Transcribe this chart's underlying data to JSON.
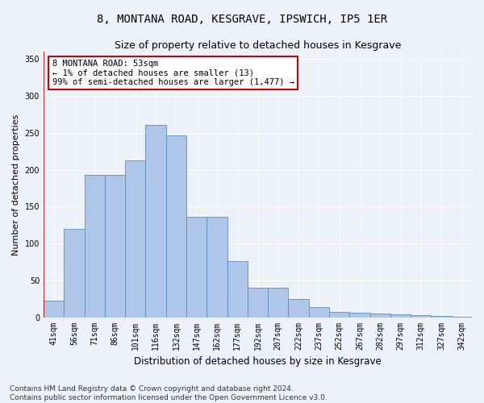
{
  "title": "8, MONTANA ROAD, KESGRAVE, IPSWICH, IP5 1ER",
  "subtitle": "Size of property relative to detached houses in Kesgrave",
  "xlabel": "Distribution of detached houses by size in Kesgrave",
  "ylabel": "Number of detached properties",
  "categories": [
    "41sqm",
    "56sqm",
    "71sqm",
    "86sqm",
    "101sqm",
    "116sqm",
    "132sqm",
    "147sqm",
    "162sqm",
    "177sqm",
    "192sqm",
    "207sqm",
    "222sqm",
    "237sqm",
    "252sqm",
    "267sqm",
    "282sqm",
    "297sqm",
    "312sqm",
    "327sqm",
    "342sqm"
  ],
  "values": [
    22,
    120,
    193,
    193,
    213,
    261,
    247,
    136,
    136,
    76,
    40,
    40,
    25,
    14,
    7,
    6,
    5,
    4,
    3,
    2,
    1
  ],
  "bar_color": "#aec6e8",
  "bar_edge_color": "#5a8fc2",
  "highlight_line_color": "#cc0000",
  "annotation_text": "8 MONTANA ROAD: 53sqm\n← 1% of detached houses are smaller (13)\n99% of semi-detached houses are larger (1,477) →",
  "annotation_box_color": "#ffffff",
  "annotation_box_edge": "#cc0000",
  "ylim": [
    0,
    360
  ],
  "yticks": [
    0,
    50,
    100,
    150,
    200,
    250,
    300,
    350
  ],
  "bg_color": "#edf1f8",
  "plot_bg_color": "#edf1f8",
  "footer_text": "Contains HM Land Registry data © Crown copyright and database right 2024.\nContains public sector information licensed under the Open Government Licence v3.0.",
  "title_fontsize": 10,
  "subtitle_fontsize": 9,
  "xlabel_fontsize": 8.5,
  "ylabel_fontsize": 8,
  "tick_fontsize": 7,
  "annotation_fontsize": 7.5,
  "footer_fontsize": 6.5
}
